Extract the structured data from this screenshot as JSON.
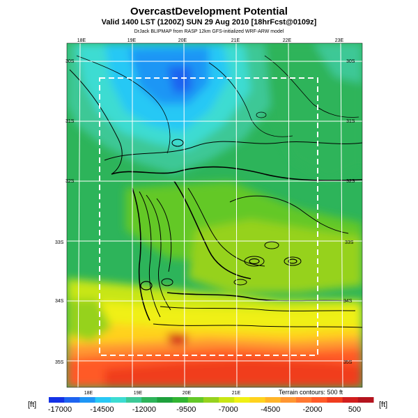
{
  "header": {
    "title": "OvercastDevelopment Potential",
    "subtitle": "Valid 1400 LST (1200Z) SUN 29 Aug 2010 [18hrFcst@0109z]",
    "source": "DrJack BLIPMAP from RASP 12km GFS-initialized WRF-ARW model"
  },
  "map": {
    "lon_labels_top": [
      "18E",
      "19E",
      "20E",
      "21E",
      "22E",
      "23E"
    ],
    "lon_labels_bottom": [
      "18E",
      "19E",
      "20E",
      "21E"
    ],
    "lat_labels_left": [
      "30S",
      "31S",
      "32S",
      "33S",
      "34S",
      "35S"
    ],
    "lat_labels_right": [
      "30S",
      "31S",
      "32S",
      "33S",
      "34S",
      "35S"
    ],
    "terrain_note": "Terrain contours: 500 ft"
  },
  "colorbar": {
    "unit_left": "[ft]",
    "unit_right": "[ft]",
    "tick_labels": [
      "-17000",
      "-14500",
      "-12000",
      "-9500",
      "-7000",
      "-4500",
      "-2000",
      "500"
    ],
    "colors": [
      "#1432e6",
      "#1e64f0",
      "#1e96f5",
      "#28c8f5",
      "#3cdcd2",
      "#3cc896",
      "#2db45a",
      "#1ea03c",
      "#32b432",
      "#64c828",
      "#96d21e",
      "#c8e614",
      "#f0f014",
      "#ffd21e",
      "#ffb428",
      "#ff9632",
      "#ff7832",
      "#ff5a28",
      "#f03c1e",
      "#d21e1e",
      "#b4141e"
    ]
  }
}
